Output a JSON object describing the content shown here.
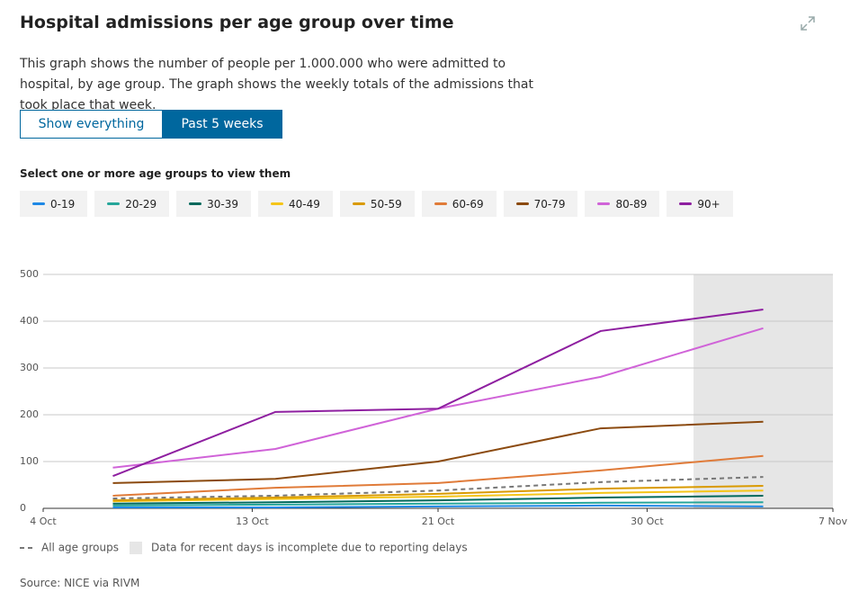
{
  "header": {
    "title": "Hospital admissions per age group over time",
    "description": "This graph shows the number of people per 1.000.000 who were admitted to hospital, by age group. The graph shows the weekly totals of the admissions that took place that week.",
    "buttons": [
      "Show everything",
      "Past 5 weeks"
    ],
    "filter_label": "Select one or more age groups to view them"
  },
  "chart_data": {
    "type": "line",
    "x": [
      "7 Oct",
      "14 Oct",
      "21 Oct",
      "28 Oct",
      "4 Nov"
    ],
    "xlim": [
      "4 Oct",
      "7 Nov"
    ],
    "xticks": [
      "4 Oct",
      "13 Oct",
      "21 Oct",
      "30 Oct",
      "7 Nov"
    ],
    "ylim": [
      0,
      500
    ],
    "yticks": [
      0,
      100,
      200,
      300,
      400,
      500
    ],
    "grid": true,
    "incomplete_range": [
      "1 Nov",
      "7 Nov"
    ],
    "incomplete_note": "Data for recent days is incomplete due to reporting delays",
    "series": [
      {
        "name": "All age groups",
        "color": "#777777",
        "dashed": true,
        "values": [
          21,
          27,
          38,
          56,
          67
        ]
      },
      {
        "name": "0-19",
        "color": "#1e88e5",
        "values": [
          2,
          2,
          4,
          6,
          4
        ]
      },
      {
        "name": "20-29",
        "color": "#26a69a",
        "values": [
          6,
          8,
          10,
          12,
          13
        ]
      },
      {
        "name": "30-39",
        "color": "#00695c",
        "values": [
          10,
          13,
          17,
          23,
          27
        ]
      },
      {
        "name": "40-49",
        "color": "#f5c518",
        "values": [
          15,
          20,
          25,
          33,
          38
        ]
      },
      {
        "name": "50-59",
        "color": "#d99a00",
        "values": [
          17,
          23,
          31,
          42,
          48
        ]
      },
      {
        "name": "60-69",
        "color": "#e07b39",
        "values": [
          27,
          44,
          54,
          81,
          112
        ]
      },
      {
        "name": "70-79",
        "color": "#8b4a0f",
        "values": [
          54,
          63,
          100,
          171,
          185
        ]
      },
      {
        "name": "80-89",
        "color": "#d063d8",
        "values": [
          87,
          127,
          213,
          281,
          385
        ]
      },
      {
        "name": "90+",
        "color": "#8e1fa0",
        "values": [
          69,
          206,
          213,
          379,
          425
        ]
      }
    ]
  },
  "source": "Source: NICE via RIVM"
}
